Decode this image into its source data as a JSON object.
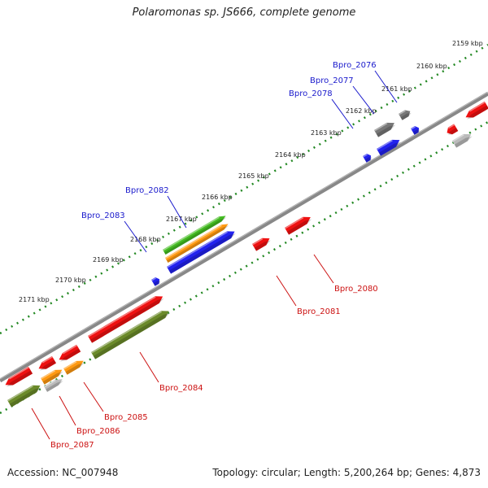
{
  "header": {
    "title": "Polaromonas sp. JS666, complete genome"
  },
  "footer": {
    "accession": "Accession: NC_007948",
    "summary": "Topology: circular; Length: 5,200,264 bp; Genes: 4,873"
  },
  "scale": {
    "ticks": [
      {
        "label": "2159 kbp"
      },
      {
        "label": "2160 kbp"
      },
      {
        "label": "2161 kbp"
      },
      {
        "label": "2162 kbp"
      },
      {
        "label": "2163 kbp"
      },
      {
        "label": "2164 kbp"
      },
      {
        "label": "2165 kbp"
      },
      {
        "label": "2166 kbp"
      },
      {
        "label": "2167 kbp"
      },
      {
        "label": "2168 kbp"
      },
      {
        "label": "2169 kbp"
      },
      {
        "label": "2170 kbp"
      },
      {
        "label": "2171 kbp"
      }
    ]
  },
  "colors": {
    "cds": "#ee1111",
    "trna": "#2222ee",
    "gray": "#777777",
    "lightgray": "#bbbbbb",
    "olive": "#6b8a2a",
    "green": "#44bb22",
    "orange": "#ff9911",
    "dots": "#228822",
    "backbone": "#888888",
    "label_blue": "#1a1acc",
    "label_red": "#cc1111"
  },
  "labels": {
    "upper": [
      {
        "name": "Bpro_2076"
      },
      {
        "name": "Bpro_2077"
      },
      {
        "name": "Bpro_2078"
      },
      {
        "name": "Bpro_2082"
      },
      {
        "name": "Bpro_2083"
      }
    ],
    "lower": [
      {
        "name": "Bpro_2080"
      },
      {
        "name": "Bpro_2081"
      },
      {
        "name": "Bpro_2084"
      },
      {
        "name": "Bpro_2085"
      },
      {
        "name": "Bpro_2086"
      },
      {
        "name": "Bpro_2087"
      }
    ]
  }
}
